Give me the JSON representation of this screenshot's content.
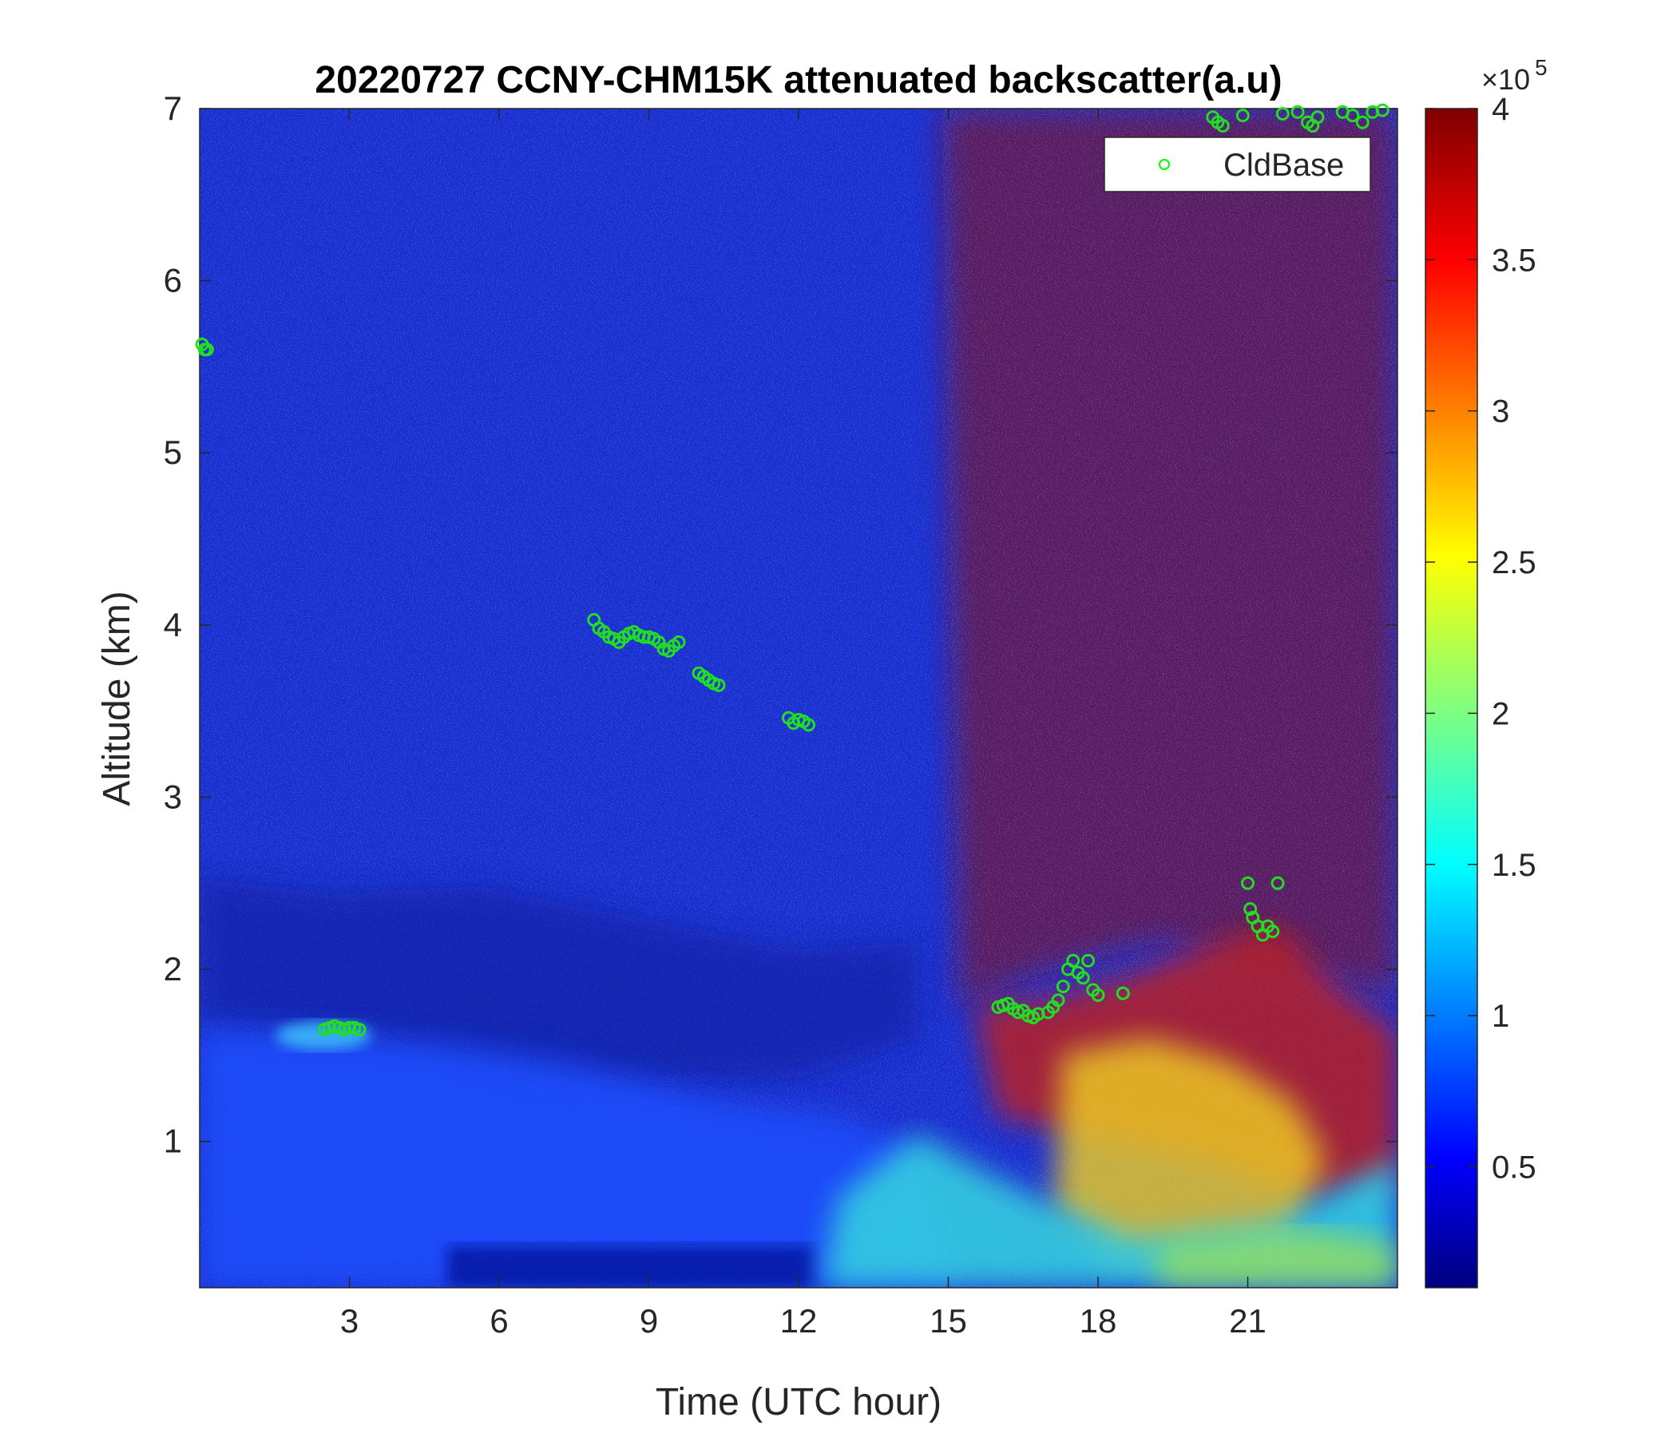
{
  "chart_data": {
    "type": "heatmap",
    "title": "20220727 CCNY-CHM15K attenuated backscatter(a.u)",
    "xlabel": "Time (UTC hour)",
    "ylabel": "Altitude (km)",
    "xlim": [
      0,
      24
    ],
    "ylim": [
      0.15,
      7
    ],
    "xticks": [
      "3",
      "6",
      "9",
      "12",
      "15",
      "18",
      "21"
    ],
    "xtick_values": [
      3,
      6,
      9,
      12,
      15,
      18,
      21
    ],
    "yticks": [
      "1",
      "2",
      "3",
      "4",
      "5",
      "6",
      "7"
    ],
    "ytick_values": [
      1,
      2,
      3,
      4,
      5,
      6,
      7
    ],
    "colorbar": {
      "colormap": "jet",
      "clim": [
        0.1,
        4
      ],
      "ticks": [
        "0.5",
        "1",
        "1.5",
        "2",
        "2.5",
        "3",
        "3.5",
        "4"
      ],
      "tick_values": [
        0.5,
        1,
        1.5,
        2,
        2.5,
        3,
        3.5,
        4
      ],
      "exponent_label": "×10",
      "exponent": "5"
    },
    "legend": {
      "position": "top-right",
      "entries": [
        {
          "name": "CldBase",
          "marker": "circle",
          "color": "#00ff00"
        }
      ]
    },
    "series": [
      {
        "name": "CldBase",
        "marker_color": "#22dd22",
        "points": [
          [
            0.05,
            5.63
          ],
          [
            0.1,
            5.6
          ],
          [
            0.15,
            5.6
          ],
          [
            2.5,
            1.65
          ],
          [
            2.6,
            1.66
          ],
          [
            2.7,
            1.67
          ],
          [
            2.8,
            1.66
          ],
          [
            2.9,
            1.65
          ],
          [
            3.0,
            1.66
          ],
          [
            3.1,
            1.66
          ],
          [
            3.2,
            1.65
          ],
          [
            7.9,
            4.03
          ],
          [
            8.0,
            3.98
          ],
          [
            8.1,
            3.96
          ],
          [
            8.2,
            3.93
          ],
          [
            8.3,
            3.92
          ],
          [
            8.4,
            3.9
          ],
          [
            8.5,
            3.93
          ],
          [
            8.6,
            3.95
          ],
          [
            8.7,
            3.96
          ],
          [
            8.8,
            3.94
          ],
          [
            8.9,
            3.93
          ],
          [
            9.0,
            3.93
          ],
          [
            9.1,
            3.92
          ],
          [
            9.2,
            3.9
          ],
          [
            9.3,
            3.86
          ],
          [
            9.4,
            3.85
          ],
          [
            9.5,
            3.88
          ],
          [
            9.6,
            3.9
          ],
          [
            10.0,
            3.72
          ],
          [
            10.1,
            3.7
          ],
          [
            10.2,
            3.68
          ],
          [
            10.3,
            3.66
          ],
          [
            10.4,
            3.65
          ],
          [
            11.8,
            3.46
          ],
          [
            11.9,
            3.43
          ],
          [
            12.0,
            3.45
          ],
          [
            12.1,
            3.44
          ],
          [
            12.2,
            3.42
          ],
          [
            16.0,
            1.78
          ],
          [
            16.1,
            1.79
          ],
          [
            16.2,
            1.8
          ],
          [
            16.3,
            1.77
          ],
          [
            16.4,
            1.75
          ],
          [
            16.5,
            1.76
          ],
          [
            16.6,
            1.73
          ],
          [
            16.7,
            1.72
          ],
          [
            16.8,
            1.74
          ],
          [
            17.0,
            1.75
          ],
          [
            17.1,
            1.78
          ],
          [
            17.2,
            1.82
          ],
          [
            17.3,
            1.9
          ],
          [
            17.4,
            2.0
          ],
          [
            17.5,
            2.05
          ],
          [
            17.6,
            1.98
          ],
          [
            17.7,
            1.95
          ],
          [
            17.8,
            2.05
          ],
          [
            17.9,
            1.88
          ],
          [
            18.0,
            1.85
          ],
          [
            18.5,
            1.86
          ],
          [
            21.0,
            2.5
          ],
          [
            21.05,
            2.35
          ],
          [
            21.1,
            2.3
          ],
          [
            21.2,
            2.25
          ],
          [
            21.3,
            2.2
          ],
          [
            21.4,
            2.25
          ],
          [
            21.5,
            2.22
          ],
          [
            21.6,
            2.5
          ],
          [
            20.3,
            6.95
          ],
          [
            20.4,
            6.92
          ],
          [
            20.5,
            6.9
          ],
          [
            20.9,
            6.96
          ],
          [
            21.7,
            6.97
          ],
          [
            22.0,
            6.98
          ],
          [
            22.2,
            6.92
          ],
          [
            22.3,
            6.9
          ],
          [
            22.4,
            6.95
          ],
          [
            22.9,
            6.98
          ],
          [
            23.1,
            6.96
          ],
          [
            23.3,
            6.92
          ],
          [
            23.5,
            6.98
          ],
          [
            23.7,
            6.99
          ]
        ]
      }
    ]
  }
}
